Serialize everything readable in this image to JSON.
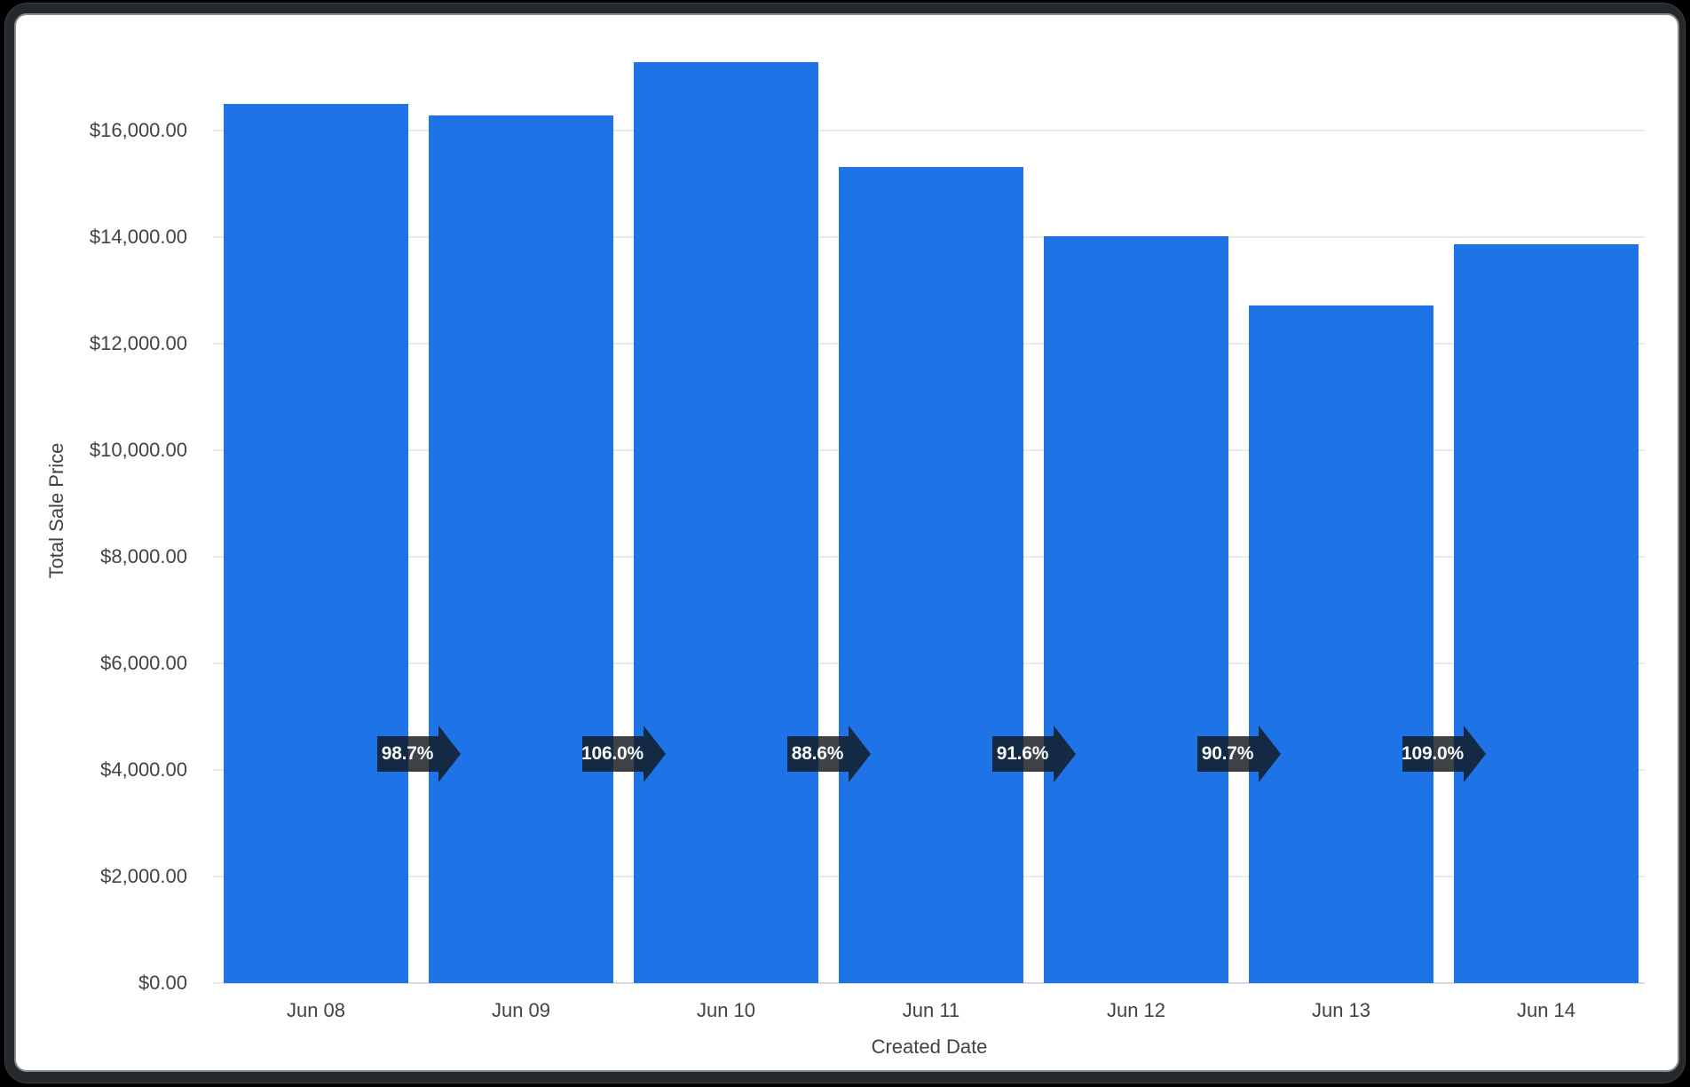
{
  "window": {
    "background_color": "#000000",
    "frame_color": "#26292b",
    "frame_highlight_color": "#888c8f",
    "card_color": "#ffffff"
  },
  "chart_data": {
    "type": "bar",
    "title": "",
    "xlabel": "Created Date",
    "ylabel": "Total Sale Price",
    "categories": [
      "Jun 08",
      "Jun 09",
      "Jun 10",
      "Jun 11",
      "Jun 12",
      "Jun 13",
      "Jun 14"
    ],
    "values": [
      16500,
      16290,
      17280,
      15310,
      14020,
      12710,
      13860
    ],
    "ylim": [
      0,
      18000
    ],
    "grid": true,
    "legend": false,
    "bar_color": "#1e74e6",
    "axis_text_color": "#3d4347",
    "gridline_color": "#e9eaed",
    "baseline_color": "#d8dbe2",
    "y_ticks": [
      {
        "value": 0,
        "label": "$0.00"
      },
      {
        "value": 2000,
        "label": "$2,000.00"
      },
      {
        "value": 4000,
        "label": "$4,000.00"
      },
      {
        "value": 6000,
        "label": "$6,000.00"
      },
      {
        "value": 8000,
        "label": "$8,000.00"
      },
      {
        "value": 10000,
        "label": "$10,000.00"
      },
      {
        "value": 12000,
        "label": "$12,000.00"
      },
      {
        "value": 14000,
        "label": "$14,000.00"
      },
      {
        "value": 16000,
        "label": "$16,000.00"
      }
    ],
    "annotations": {
      "description": "percent change vs previous bar, shown as dark arrow badges between bars",
      "shape": "right-arrow",
      "color": "rgba(18,24,30,0.81)",
      "text_color": "#f7f8f8",
      "labels": [
        "98.7%",
        "106.0%",
        "88.6%",
        "91.6%",
        "90.7%",
        "109.0%"
      ]
    }
  }
}
